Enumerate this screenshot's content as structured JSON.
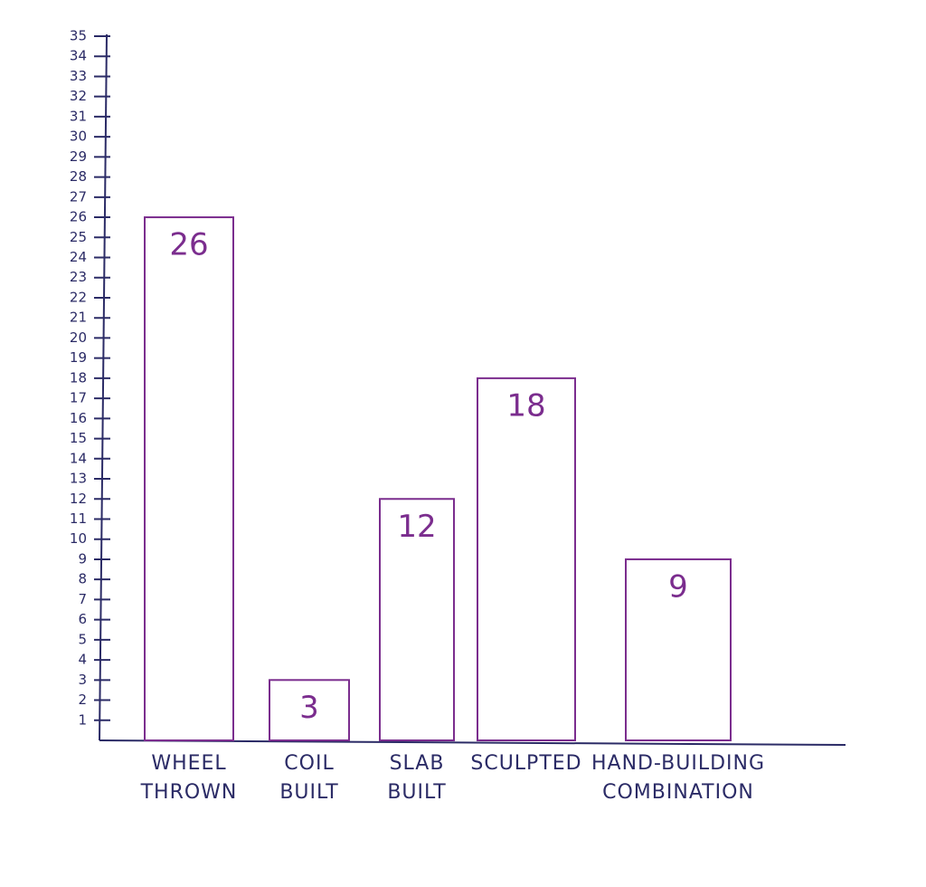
{
  "chart_data": {
    "type": "bar",
    "categories": [
      "WHEEL THROWN",
      "COIL BUILT",
      "SLAB BUILT",
      "SCULPTED",
      "HAND-BUILDING COMBINATION"
    ],
    "values": [
      26,
      3,
      12,
      18,
      9
    ],
    "color": "#7b2d8e",
    "ylim": [
      0,
      35
    ],
    "yticks": [
      1,
      2,
      3,
      4,
      5,
      6,
      7,
      8,
      9,
      10,
      11,
      12,
      13,
      14,
      15,
      16,
      17,
      18,
      19,
      20,
      21,
      22,
      23,
      24,
      25,
      26,
      27,
      28,
      29,
      30,
      31,
      32,
      33,
      34,
      35
    ]
  }
}
